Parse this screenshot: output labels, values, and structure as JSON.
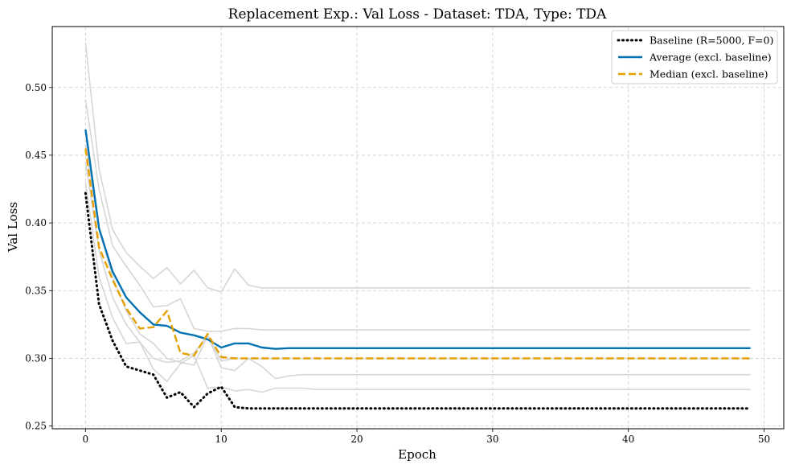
{
  "chart_data": {
    "type": "line",
    "title": "Replacement Exp.: Val Loss - Dataset: TDA, Type: TDA",
    "xlabel": "Epoch",
    "ylabel": "Val Loss",
    "xlim": [
      -2.45,
      51.45
    ],
    "ylim": [
      0.248,
      0.545
    ],
    "xticks": [
      0,
      10,
      20,
      30,
      40,
      50
    ],
    "yticks": [
      0.25,
      0.3,
      0.35,
      0.4,
      0.45,
      0.5
    ],
    "ytick_labels": [
      "0.25",
      "0.30",
      "0.35",
      "0.40",
      "0.45",
      "0.50"
    ],
    "grid": true,
    "legend_position": "top-right",
    "x": [
      0,
      1,
      2,
      3,
      4,
      5,
      6,
      7,
      8,
      9,
      10,
      11,
      12,
      13,
      14,
      15,
      16,
      17,
      18,
      19,
      20,
      21,
      22,
      23,
      24,
      25,
      26,
      27,
      28,
      29,
      30,
      31,
      32,
      33,
      34,
      35,
      36,
      37,
      38,
      39,
      40,
      41,
      42,
      43,
      44,
      45,
      46,
      47,
      48,
      49
    ],
    "background_runs": [
      [
        0.533,
        0.44,
        0.395,
        0.378,
        0.368,
        0.359,
        0.367,
        0.355,
        0.365,
        0.352,
        0.349,
        0.366,
        0.354,
        0.352,
        0.352,
        0.352,
        0.352,
        0.352,
        0.352,
        0.352,
        0.352,
        0.352,
        0.352,
        0.352,
        0.352,
        0.352,
        0.352,
        0.352,
        0.352,
        0.352,
        0.352,
        0.352,
        0.352,
        0.352,
        0.352,
        0.352,
        0.352,
        0.352,
        0.352,
        0.352,
        0.352,
        0.352,
        0.352,
        0.352,
        0.352,
        0.352,
        0.352,
        0.352,
        0.352,
        0.352
      ],
      [
        0.491,
        0.425,
        0.383,
        0.368,
        0.354,
        0.338,
        0.339,
        0.344,
        0.322,
        0.32,
        0.32,
        0.322,
        0.322,
        0.321,
        0.321,
        0.321,
        0.321,
        0.321,
        0.321,
        0.321,
        0.321,
        0.321,
        0.321,
        0.321,
        0.321,
        0.321,
        0.321,
        0.321,
        0.321,
        0.321,
        0.321,
        0.321,
        0.321,
        0.321,
        0.321,
        0.321,
        0.321,
        0.321,
        0.321,
        0.321,
        0.321,
        0.321,
        0.321,
        0.321,
        0.321,
        0.321,
        0.321,
        0.321,
        0.321,
        0.321
      ],
      [
        0.458,
        0.395,
        0.36,
        0.335,
        0.318,
        0.311,
        0.3,
        0.297,
        0.295,
        0.317,
        0.298,
        0.3,
        0.3,
        0.3,
        0.3,
        0.3,
        0.3,
        0.3,
        0.3,
        0.3,
        0.3,
        0.3,
        0.3,
        0.3,
        0.3,
        0.3,
        0.3,
        0.3,
        0.3,
        0.3,
        0.3,
        0.3,
        0.3,
        0.3,
        0.3,
        0.3,
        0.3,
        0.3,
        0.3,
        0.3,
        0.3,
        0.3,
        0.3,
        0.3,
        0.3,
        0.3,
        0.3,
        0.3,
        0.3,
        0.3
      ],
      [
        0.445,
        0.38,
        0.345,
        0.325,
        0.312,
        0.3,
        0.297,
        0.298,
        0.304,
        0.317,
        0.293,
        0.291,
        0.3,
        0.294,
        0.285,
        0.287,
        0.288,
        0.288,
        0.288,
        0.288,
        0.288,
        0.288,
        0.288,
        0.288,
        0.288,
        0.288,
        0.288,
        0.288,
        0.288,
        0.288,
        0.288,
        0.288,
        0.288,
        0.288,
        0.288,
        0.288,
        0.288,
        0.288,
        0.288,
        0.288,
        0.288,
        0.288,
        0.288,
        0.288,
        0.288,
        0.288,
        0.288,
        0.288,
        0.288,
        0.288
      ],
      [
        0.43,
        0.36,
        0.33,
        0.311,
        0.312,
        0.292,
        0.283,
        0.296,
        0.302,
        0.278,
        0.279,
        0.276,
        0.277,
        0.275,
        0.278,
        0.278,
        0.278,
        0.277,
        0.277,
        0.277,
        0.277,
        0.277,
        0.277,
        0.277,
        0.277,
        0.277,
        0.277,
        0.277,
        0.277,
        0.277,
        0.277,
        0.277,
        0.277,
        0.277,
        0.277,
        0.277,
        0.277,
        0.277,
        0.277,
        0.277,
        0.277,
        0.277,
        0.277,
        0.277,
        0.277,
        0.277,
        0.277,
        0.277,
        0.277,
        0.277
      ]
    ],
    "series": [
      {
        "name": "Baseline (R=5000, F=0)",
        "color": "#000000",
        "style": "dotted",
        "values": [
          0.422,
          0.34,
          0.313,
          0.294,
          0.291,
          0.288,
          0.271,
          0.275,
          0.264,
          0.274,
          0.279,
          0.264,
          0.263,
          0.263,
          0.263,
          0.263,
          0.263,
          0.263,
          0.263,
          0.263,
          0.263,
          0.263,
          0.263,
          0.263,
          0.263,
          0.263,
          0.263,
          0.263,
          0.263,
          0.263,
          0.263,
          0.263,
          0.263,
          0.263,
          0.263,
          0.263,
          0.263,
          0.263,
          0.263,
          0.263,
          0.263,
          0.263,
          0.263,
          0.263,
          0.263,
          0.263,
          0.263,
          0.263,
          0.263,
          0.263
        ]
      },
      {
        "name": "Average (excl. baseline)",
        "color": "#0072b2",
        "style": "solid",
        "values": [
          0.469,
          0.396,
          0.364,
          0.345,
          0.334,
          0.325,
          0.324,
          0.319,
          0.317,
          0.314,
          0.308,
          0.311,
          0.311,
          0.308,
          0.307,
          0.3075,
          0.3075,
          0.3075,
          0.3075,
          0.3075,
          0.3075,
          0.3075,
          0.3075,
          0.3075,
          0.3075,
          0.3075,
          0.3075,
          0.3075,
          0.3075,
          0.3075,
          0.3075,
          0.3075,
          0.3075,
          0.3075,
          0.3075,
          0.3075,
          0.3075,
          0.3075,
          0.3075,
          0.3075,
          0.3075,
          0.3075,
          0.3075,
          0.3075,
          0.3075,
          0.3075,
          0.3075,
          0.3075,
          0.3075,
          0.3075
        ]
      },
      {
        "name": "Median (excl. baseline)",
        "color": "#e69f00",
        "style": "dashed",
        "values": [
          0.455,
          0.382,
          0.358,
          0.337,
          0.322,
          0.323,
          0.335,
          0.304,
          0.302,
          0.318,
          0.301,
          0.3,
          0.3,
          0.3,
          0.3,
          0.3,
          0.3,
          0.3,
          0.3,
          0.3,
          0.3,
          0.3,
          0.3,
          0.3,
          0.3,
          0.3,
          0.3,
          0.3,
          0.3,
          0.3,
          0.3,
          0.3,
          0.3,
          0.3,
          0.3,
          0.3,
          0.3,
          0.3,
          0.3,
          0.3,
          0.3,
          0.3,
          0.3,
          0.3,
          0.3,
          0.3,
          0.3,
          0.3,
          0.3,
          0.3
        ]
      }
    ]
  }
}
